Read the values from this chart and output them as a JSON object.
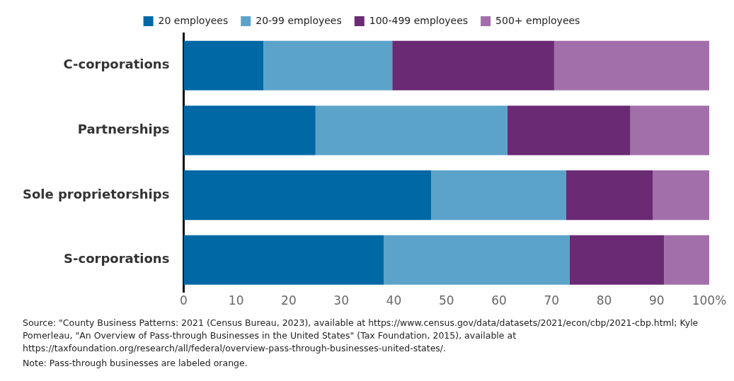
{
  "chart_data": {
    "type": "bar",
    "orientation": "horizontal",
    "stacked": true,
    "categories": [
      "C-corporations",
      "Partnerships",
      "Sole proprietorships",
      "S-corporations"
    ],
    "series": [
      {
        "name": "20 employees",
        "color": "#0068a5",
        "values": [
          15.2,
          25.1,
          47.1,
          38.1
        ]
      },
      {
        "name": "20-99 employees",
        "color": "#5ba3c9",
        "values": [
          24.5,
          36.5,
          25.7,
          35.3
        ]
      },
      {
        "name": "100-499 employees",
        "color": "#6b2a74",
        "values": [
          30.8,
          23.4,
          16.5,
          18
        ]
      },
      {
        "name": "500+ employees",
        "color": "#a26fab",
        "values": [
          29.5,
          15,
          10.7,
          8.6
        ]
      }
    ],
    "xlim": [
      0,
      100
    ],
    "xticks": [
      0,
      10,
      20,
      30,
      40,
      50,
      60,
      70,
      80,
      90,
      {
        "value": 100,
        "label": "100%"
      }
    ],
    "grid": false,
    "legend": "top",
    "annotations": [
      "Source: \"County Business Patterns: 2021 (Census Bureau, 2023), available at https://www.census.gov/data/datasets/2021/econ/cbp/2021-cbp.html; Kyle Pomerleau, \"An Overview of Pass-through Businesses in the United States\" (Tax Foundation, 2015), available at https://taxfoundation.org/research/all/federal/overview-pass-through-businesses-united-states/.",
      "Note: Pass-through businesses are labeled orange."
    ]
  }
}
